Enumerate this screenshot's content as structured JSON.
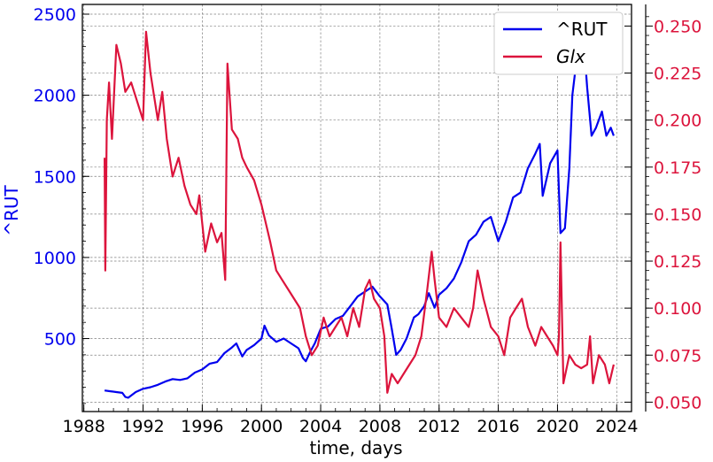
{
  "chart_data": {
    "type": "line",
    "xlabel": "time, days",
    "ylabel_left": "^RUT",
    "ylabel_right": "",
    "xlim": [
      1987.9,
      2025.0
    ],
    "ylim_left": [
      50,
      2560
    ],
    "ylim_right": [
      0.045,
      0.2615
    ],
    "x_ticks": [
      1988,
      1992,
      1996,
      2000,
      2004,
      2008,
      2012,
      2016,
      2020,
      2024
    ],
    "x_tick_labels": [
      "1988",
      "1992",
      "1996",
      "2000",
      "2004",
      "2008",
      "2012",
      "2016",
      "2020",
      "2024"
    ],
    "y_left_ticks": [
      500,
      1000,
      1500,
      2000,
      2500
    ],
    "y_left_tick_labels": [
      "500",
      "1000",
      "1500",
      "2000",
      "2500"
    ],
    "y_right_ticks": [
      0.05,
      0.075,
      0.1,
      0.125,
      0.15,
      0.175,
      0.2,
      0.225,
      0.25
    ],
    "y_right_tick_labels": [
      "0.050",
      "0.075",
      "0.100",
      "0.125",
      "0.150",
      "0.175",
      "0.200",
      "0.225",
      "0.250"
    ],
    "grid": true,
    "legend_position": "top-right",
    "colors": {
      "rut": "#0000ee",
      "glx": "#dc143c"
    },
    "series": [
      {
        "name": "^RUT",
        "axis": "left",
        "color": "#0000ee",
        "x": [
          1989.4,
          1989.8,
          1990.2,
          1990.6,
          1990.8,
          1991.0,
          1991.5,
          1992.0,
          1992.5,
          1993.0,
          1993.5,
          1994.0,
          1994.5,
          1995.0,
          1995.5,
          1996.0,
          1996.5,
          1997.0,
          1997.5,
          1998.0,
          1998.3,
          1998.7,
          1999.0,
          1999.5,
          2000.0,
          2000.2,
          2000.5,
          2001.0,
          2001.5,
          2002.0,
          2002.5,
          2002.8,
          2003.0,
          2003.3,
          2003.6,
          2004.0,
          2004.5,
          2005.0,
          2005.5,
          2006.0,
          2006.5,
          2007.0,
          2007.5,
          2008.0,
          2008.5,
          2008.8,
          2009.1,
          2009.4,
          2009.8,
          2010.3,
          2010.6,
          2011.0,
          2011.3,
          2011.7,
          2012.0,
          2012.5,
          2013.0,
          2013.5,
          2014.0,
          2014.5,
          2015.0,
          2015.5,
          2016.0,
          2016.5,
          2017.0,
          2017.5,
          2018.0,
          2018.5,
          2018.8,
          2019.0,
          2019.5,
          2020.0,
          2020.2,
          2020.5,
          2020.8,
          2021.0,
          2021.2,
          2021.5,
          2021.8,
          2022.0,
          2022.3,
          2022.6,
          2023.0,
          2023.3,
          2023.6,
          2023.8
        ],
        "y": [
          180,
          175,
          170,
          165,
          140,
          135,
          170,
          190,
          200,
          215,
          235,
          250,
          245,
          255,
          290,
          310,
          345,
          355,
          410,
          445,
          470,
          390,
          430,
          460,
          500,
          580,
          520,
          480,
          500,
          470,
          440,
          380,
          360,
          420,
          470,
          560,
          575,
          620,
          640,
          700,
          760,
          790,
          820,
          760,
          710,
          560,
          400,
          430,
          500,
          630,
          650,
          700,
          780,
          690,
          770,
          810,
          870,
          970,
          1100,
          1140,
          1220,
          1250,
          1100,
          1220,
          1370,
          1400,
          1550,
          1640,
          1700,
          1380,
          1580,
          1660,
          1150,
          1180,
          1550,
          2000,
          2150,
          2250,
          2300,
          2050,
          1750,
          1800,
          1900,
          1750,
          1800,
          1750
        ]
      },
      {
        "name": "Glx",
        "axis": "right",
        "color": "#dc143c",
        "x": [
          1989.4,
          1989.45,
          1989.55,
          1989.7,
          1989.9,
          1990.2,
          1990.5,
          1990.8,
          1991.2,
          1991.6,
          1992.0,
          1992.2,
          1992.5,
          1993.0,
          1993.3,
          1993.6,
          1994.0,
          1994.4,
          1994.8,
          1995.2,
          1995.6,
          1995.8,
          1996.2,
          1996.6,
          1997.0,
          1997.3,
          1997.55,
          1997.7,
          1998.0,
          1998.4,
          1998.7,
          1999.0,
          1999.5,
          2000.0,
          2000.3,
          2000.6,
          2001.0,
          2001.4,
          2001.8,
          2002.2,
          2002.6,
          2003.0,
          2003.4,
          2003.8,
          2004.2,
          2004.6,
          2005.0,
          2005.4,
          2005.8,
          2006.2,
          2006.6,
          2007.0,
          2007.3,
          2007.6,
          2008.0,
          2008.3,
          2008.5,
          2008.8,
          2009.2,
          2009.6,
          2010.0,
          2010.4,
          2010.8,
          2011.2,
          2011.5,
          2011.7,
          2012.0,
          2012.5,
          2013.0,
          2013.5,
          2014.0,
          2014.3,
          2014.6,
          2015.0,
          2015.5,
          2016.0,
          2016.4,
          2016.8,
          2017.2,
          2017.6,
          2018.0,
          2018.5,
          2018.9,
          2019.3,
          2019.7,
          2020.0,
          2020.1,
          2020.2,
          2020.4,
          2020.8,
          2021.2,
          2021.6,
          2022.0,
          2022.2,
          2022.4,
          2022.8,
          2023.2,
          2023.5,
          2023.8
        ],
        "y": [
          0.18,
          0.12,
          0.2,
          0.22,
          0.19,
          0.24,
          0.23,
          0.215,
          0.22,
          0.21,
          0.2,
          0.247,
          0.225,
          0.2,
          0.215,
          0.19,
          0.17,
          0.18,
          0.165,
          0.155,
          0.15,
          0.16,
          0.13,
          0.145,
          0.135,
          0.14,
          0.115,
          0.23,
          0.195,
          0.19,
          0.18,
          0.175,
          0.168,
          0.155,
          0.145,
          0.135,
          0.12,
          0.115,
          0.11,
          0.105,
          0.1,
          0.085,
          0.075,
          0.08,
          0.095,
          0.085,
          0.09,
          0.095,
          0.085,
          0.1,
          0.09,
          0.11,
          0.115,
          0.105,
          0.1,
          0.085,
          0.055,
          0.065,
          0.06,
          0.065,
          0.07,
          0.075,
          0.085,
          0.11,
          0.13,
          0.115,
          0.095,
          0.09,
          0.1,
          0.095,
          0.09,
          0.1,
          0.12,
          0.105,
          0.09,
          0.085,
          0.075,
          0.095,
          0.1,
          0.105,
          0.09,
          0.08,
          0.09,
          0.085,
          0.08,
          0.075,
          0.085,
          0.135,
          0.06,
          0.075,
          0.07,
          0.068,
          0.07,
          0.085,
          0.06,
          0.075,
          0.07,
          0.06,
          0.07
        ]
      }
    ]
  }
}
